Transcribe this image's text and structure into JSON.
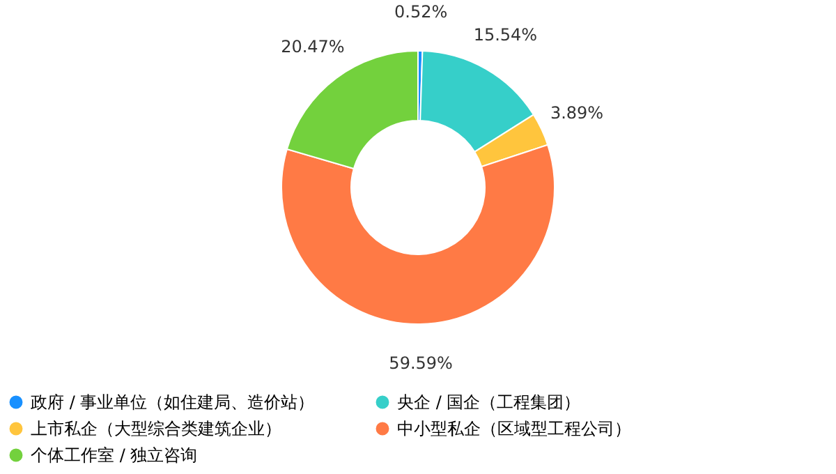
{
  "chart_data": {
    "type": "donut",
    "categories": [
      "政府 / 事业单位（如住建局、造价站）",
      "央企 / 国企（工程集团）",
      "上市私企（大型综合类建筑企业）",
      "中小型私企（区域型工程公司）",
      "个体工作室 / 独立咨询"
    ],
    "values": [
      0.52,
      15.54,
      3.89,
      59.59,
      20.47
    ],
    "colors": [
      "#1890ff",
      "#36cfc9",
      "#ffc53d",
      "#ff7a45",
      "#73d13d"
    ],
    "value_labels": [
      "0.52%",
      "15.54%",
      "3.89%",
      "59.59%",
      "20.47%"
    ],
    "legend": "bottom"
  }
}
